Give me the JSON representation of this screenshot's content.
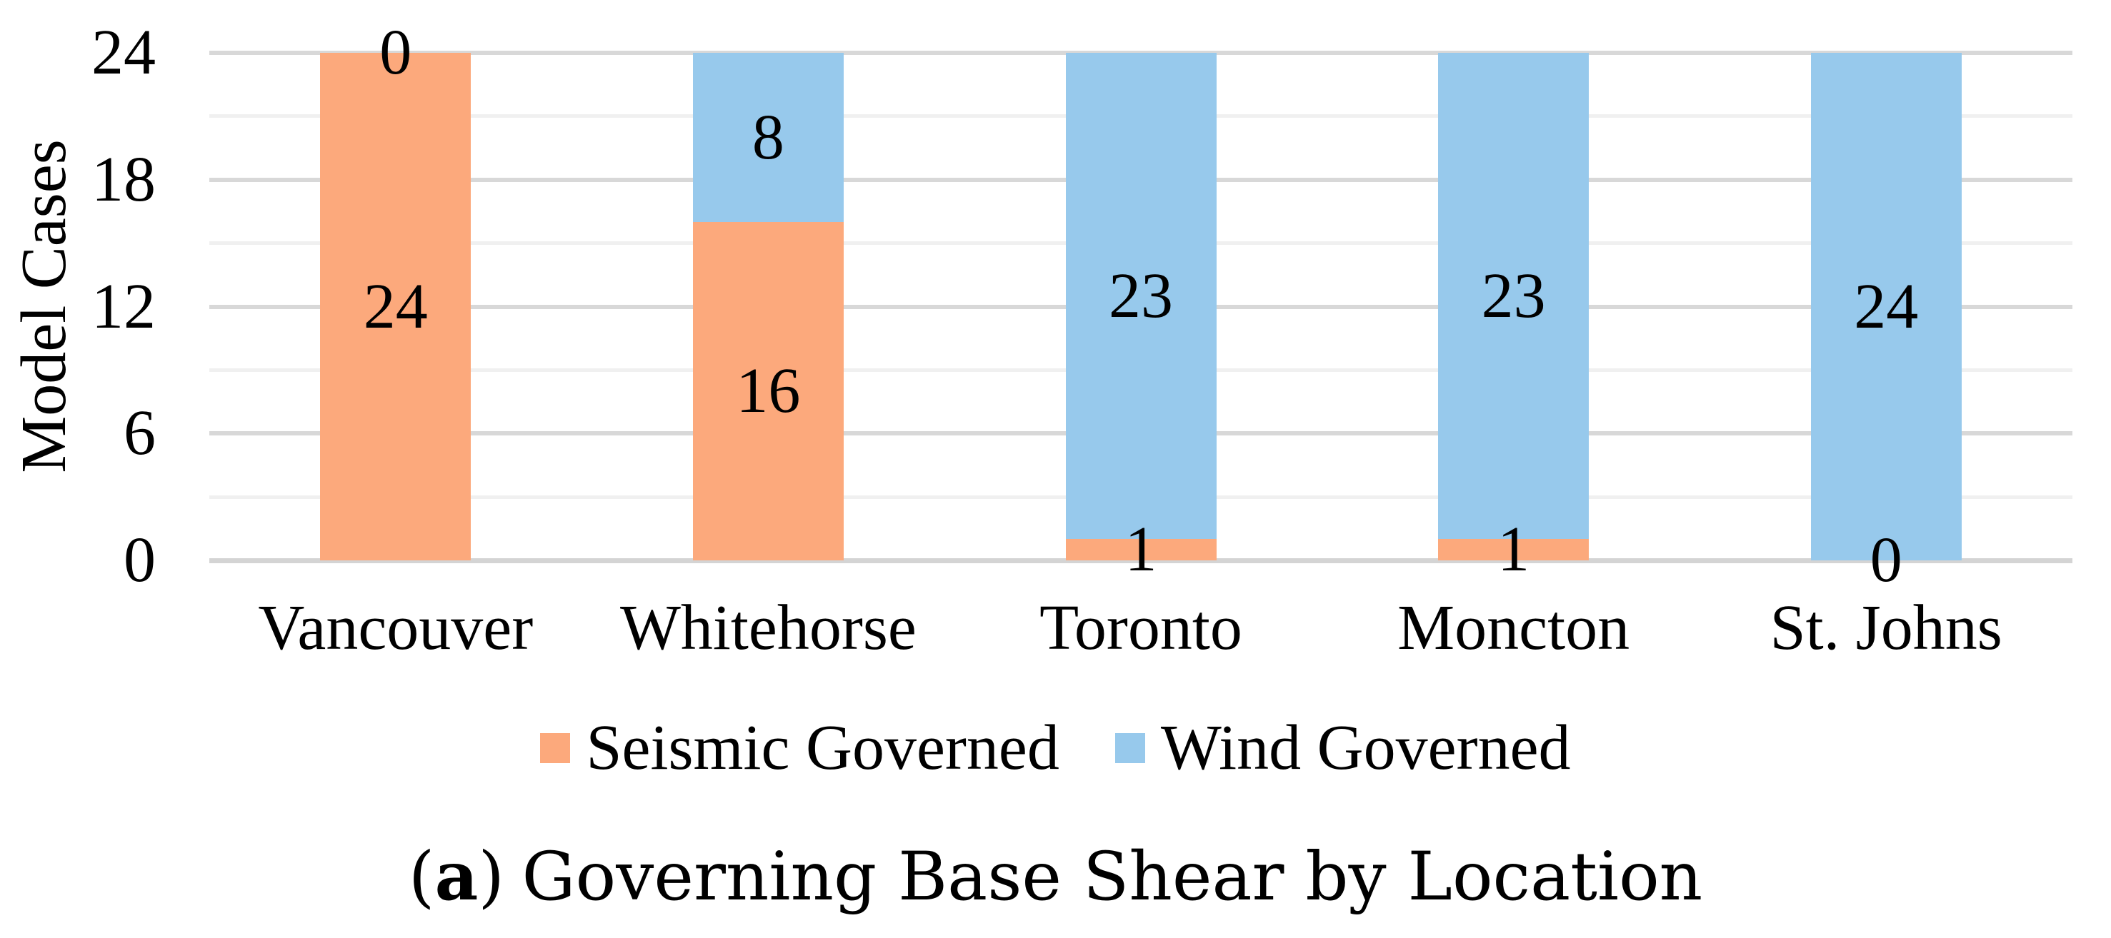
{
  "chart_data": {
    "type": "bar",
    "stacked": true,
    "title": "",
    "ylabel": "Model Cases",
    "xlabel": "",
    "categories": [
      "Vancouver",
      "Whitehorse",
      "Toronto",
      "Moncton",
      "St. Johns"
    ],
    "series": [
      {
        "name": "Seismic Governed",
        "color": "#FCA97C",
        "values": [
          24,
          16,
          1,
          1,
          0
        ]
      },
      {
        "name": "Wind Governed",
        "color": "#97C9EC",
        "values": [
          0,
          8,
          23,
          23,
          24
        ]
      }
    ],
    "ylim": [
      0,
      24
    ],
    "yticks": [
      0,
      6,
      12,
      18,
      24
    ],
    "minor_gridline_values": [
      3,
      9,
      15,
      21
    ],
    "grid": "horizontal",
    "legend_position": "bottom",
    "data_labels": true
  },
  "colors": {
    "major_gridline": "#D8D8D8",
    "minor_gridline": "#F0F0F0",
    "zero_line": "#D4D4D4",
    "text": "#000000",
    "background": "#FFFFFF"
  },
  "caption": {
    "open": "(",
    "letter": "a",
    "close": ")",
    "text": "Governing Base Shear by Location"
  }
}
